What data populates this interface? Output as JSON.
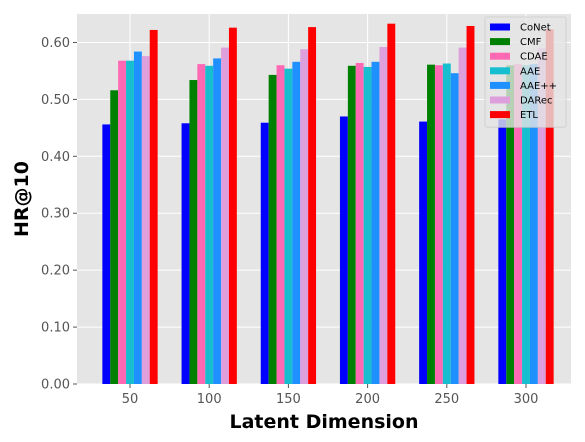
{
  "chart_data": {
    "type": "bar",
    "title": "",
    "xlabel": "Latent Dimension",
    "ylabel": "HR@10",
    "categories": [
      "50",
      "100",
      "150",
      "200",
      "250",
      "300"
    ],
    "ylim": [
      0,
      0.65
    ],
    "yticks": [
      0.0,
      0.1,
      0.2,
      0.3,
      0.4,
      0.5,
      0.6
    ],
    "ytick_labels": [
      "0.00",
      "0.10",
      "0.20",
      "0.30",
      "0.40",
      "0.50",
      "0.60"
    ],
    "grid": true,
    "legend_position": "top-right",
    "series": [
      {
        "name": "CoNet",
        "color": "#0000ff",
        "values": [
          0.456,
          0.458,
          0.459,
          0.47,
          0.461,
          0.465
        ]
      },
      {
        "name": "CMF",
        "color": "#008000",
        "values": [
          0.516,
          0.534,
          0.543,
          0.559,
          0.561,
          0.56
        ]
      },
      {
        "name": "CDAE",
        "color": "#ff69b4",
        "values": [
          0.568,
          0.562,
          0.56,
          0.564,
          0.56,
          0.562
        ]
      },
      {
        "name": "AAE",
        "color": "#17becf",
        "values": [
          0.568,
          0.559,
          0.554,
          0.557,
          0.563,
          0.56
        ]
      },
      {
        "name": "AAE++",
        "color": "#1e90ff",
        "values": [
          0.584,
          0.572,
          0.566,
          0.566,
          0.546,
          0.562
        ]
      },
      {
        "name": "DARec",
        "color": "#dda0dd",
        "values": [
          0.576,
          0.591,
          0.588,
          0.592,
          0.591,
          0.59
        ]
      },
      {
        "name": "ETL",
        "color": "#ff0000",
        "values": [
          0.622,
          0.626,
          0.627,
          0.633,
          0.629,
          0.623
        ]
      }
    ]
  }
}
